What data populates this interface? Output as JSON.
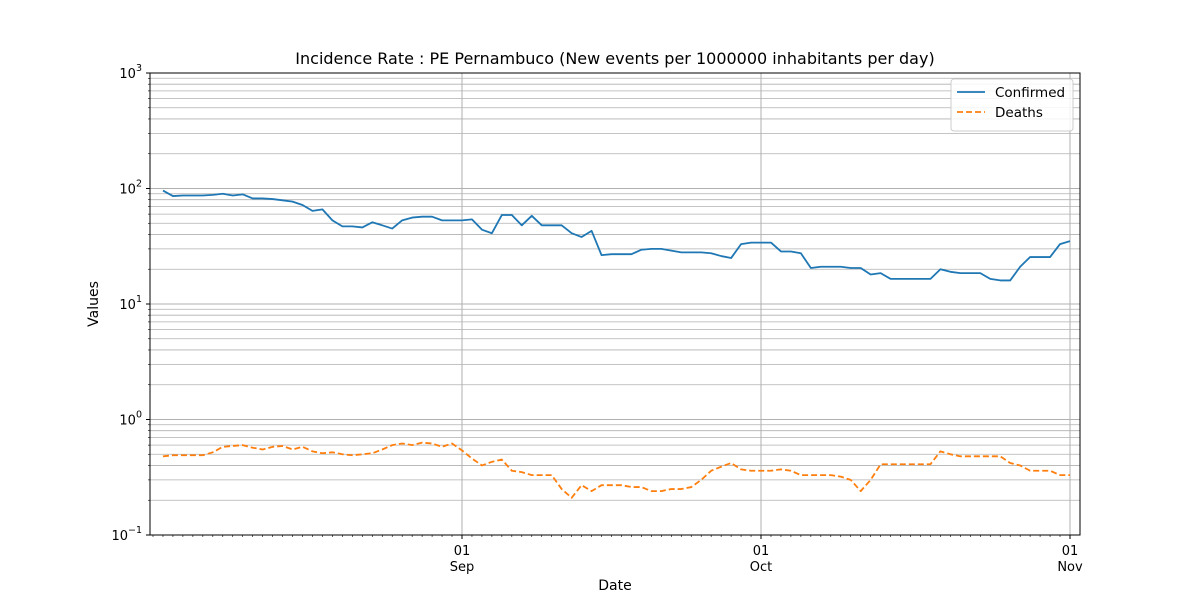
{
  "chart_data": {
    "type": "line",
    "title": "Incidence Rate : PE Pernambuco (New events per 1000000 inhabitants per day)",
    "xlabel": "Date",
    "ylabel": "Values",
    "yscale": "log",
    "ylim": [
      0.1,
      1000
    ],
    "xlim": [
      "2020-08-01",
      "2020-11-01"
    ],
    "grid": true,
    "legend_position": "top-right",
    "x_ticks": [
      {
        "date": "2020-09-01",
        "day": "01",
        "month": "Sep"
      },
      {
        "date": "2020-10-01",
        "day": "01",
        "month": "Oct"
      },
      {
        "date": "2020-11-01",
        "day": "01",
        "month": "Nov"
      }
    ],
    "y_ticks": [
      {
        "value": 0.1,
        "base": "10",
        "exp": "−1"
      },
      {
        "value": 1,
        "base": "10",
        "exp": "0"
      },
      {
        "value": 10,
        "base": "10",
        "exp": "1"
      },
      {
        "value": 100,
        "base": "10",
        "exp": "2"
      },
      {
        "value": 1000,
        "base": "10",
        "exp": "3"
      }
    ],
    "x": [
      "2020-08-02",
      "2020-08-03",
      "2020-08-04",
      "2020-08-05",
      "2020-08-06",
      "2020-08-07",
      "2020-08-08",
      "2020-08-09",
      "2020-08-10",
      "2020-08-11",
      "2020-08-12",
      "2020-08-13",
      "2020-08-14",
      "2020-08-15",
      "2020-08-16",
      "2020-08-17",
      "2020-08-18",
      "2020-08-19",
      "2020-08-20",
      "2020-08-21",
      "2020-08-22",
      "2020-08-23",
      "2020-08-24",
      "2020-08-25",
      "2020-08-26",
      "2020-08-27",
      "2020-08-28",
      "2020-08-29",
      "2020-08-30",
      "2020-08-31",
      "2020-09-01",
      "2020-09-02",
      "2020-09-03",
      "2020-09-04",
      "2020-09-05",
      "2020-09-06",
      "2020-09-07",
      "2020-09-08",
      "2020-09-09",
      "2020-09-10",
      "2020-09-11",
      "2020-09-12",
      "2020-09-13",
      "2020-09-14",
      "2020-09-15",
      "2020-09-16",
      "2020-09-17",
      "2020-09-18",
      "2020-09-19",
      "2020-09-20",
      "2020-09-21",
      "2020-09-22",
      "2020-09-23",
      "2020-09-24",
      "2020-09-25",
      "2020-09-26",
      "2020-09-27",
      "2020-09-28",
      "2020-09-29",
      "2020-09-30",
      "2020-10-01",
      "2020-10-02",
      "2020-10-03",
      "2020-10-04",
      "2020-10-05",
      "2020-10-06",
      "2020-10-07",
      "2020-10-08",
      "2020-10-09",
      "2020-10-10",
      "2020-10-11",
      "2020-10-12",
      "2020-10-13",
      "2020-10-14",
      "2020-10-15",
      "2020-10-16",
      "2020-10-17",
      "2020-10-18",
      "2020-10-19",
      "2020-10-20",
      "2020-10-21",
      "2020-10-22",
      "2020-10-23",
      "2020-10-24",
      "2020-10-25",
      "2020-10-26",
      "2020-10-27",
      "2020-10-28",
      "2020-10-29",
      "2020-10-30",
      "2020-10-31",
      "2020-11-01"
    ],
    "series": [
      {
        "name": "Confirmed",
        "color": "#1f77b4",
        "dash": "solid",
        "values": [
          96,
          86,
          87,
          87,
          87,
          88,
          90,
          87,
          89,
          82,
          82,
          81,
          79,
          77,
          72,
          64,
          66,
          53,
          47,
          47,
          46,
          51,
          48,
          45,
          53,
          56,
          57,
          57,
          53,
          53,
          53,
          54,
          44,
          41,
          59,
          59,
          48,
          58,
          48,
          48,
          48,
          41,
          38,
          43,
          26.5,
          27,
          27,
          27,
          29.5,
          30,
          30,
          29,
          28,
          28,
          28,
          27.5,
          26,
          25,
          33,
          34,
          34,
          34,
          28.5,
          28.5,
          27.5,
          20.5,
          21,
          21,
          21,
          20.5,
          20.5,
          18,
          18.5,
          16.5,
          16.5,
          16.5,
          16.5,
          16.5,
          20,
          19,
          18.5,
          18.5,
          18.5,
          16.5,
          16,
          16,
          21,
          25.5,
          25.5,
          25.5,
          33,
          35
        ]
      },
      {
        "name": "Deaths",
        "color": "#ff7f0e",
        "dash": "dashed",
        "values": [
          0.48,
          0.49,
          0.49,
          0.49,
          0.49,
          0.52,
          0.58,
          0.59,
          0.6,
          0.57,
          0.55,
          0.58,
          0.59,
          0.55,
          0.58,
          0.53,
          0.51,
          0.52,
          0.5,
          0.49,
          0.5,
          0.51,
          0.55,
          0.6,
          0.62,
          0.6,
          0.63,
          0.62,
          0.58,
          0.62,
          0.54,
          0.46,
          0.4,
          0.43,
          0.45,
          0.36,
          0.35,
          0.33,
          0.33,
          0.33,
          0.25,
          0.21,
          0.27,
          0.24,
          0.27,
          0.27,
          0.27,
          0.26,
          0.26,
          0.24,
          0.24,
          0.25,
          0.25,
          0.26,
          0.3,
          0.36,
          0.39,
          0.42,
          0.37,
          0.36,
          0.36,
          0.36,
          0.37,
          0.36,
          0.33,
          0.33,
          0.33,
          0.33,
          0.32,
          0.3,
          0.24,
          0.3,
          0.41,
          0.41,
          0.41,
          0.41,
          0.41,
          0.41,
          0.53,
          0.5,
          0.48,
          0.48,
          0.48,
          0.48,
          0.48,
          0.42,
          0.4,
          0.36,
          0.36,
          0.36,
          0.33,
          0.33
        ]
      }
    ]
  }
}
